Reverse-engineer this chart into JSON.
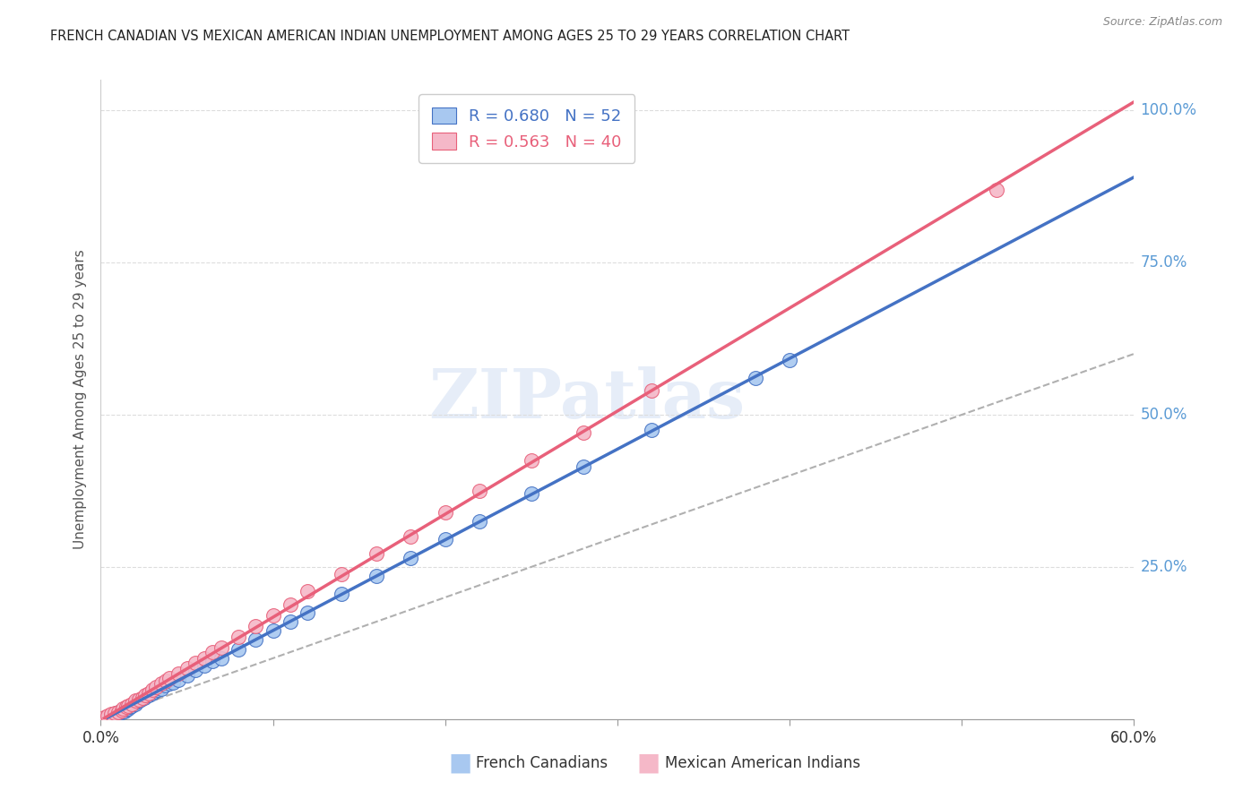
{
  "title": "FRENCH CANADIAN VS MEXICAN AMERICAN INDIAN UNEMPLOYMENT AMONG AGES 25 TO 29 YEARS CORRELATION CHART",
  "source": "Source: ZipAtlas.com",
  "ylabel": "Unemployment Among Ages 25 to 29 years",
  "xlim": [
    0.0,
    0.6
  ],
  "ylim": [
    0.0,
    1.05
  ],
  "xticks": [
    0.0,
    0.1,
    0.2,
    0.3,
    0.4,
    0.5,
    0.6
  ],
  "xticklabels": [
    "0.0%",
    "",
    "",
    "",
    "",
    "",
    "60.0%"
  ],
  "ytick_vals": [
    0.0,
    0.25,
    0.5,
    0.75,
    1.0
  ],
  "ytick_right_labels": [
    "",
    "25.0%",
    "50.0%",
    "75.0%",
    "100.0%"
  ],
  "R_blue": 0.68,
  "N_blue": 52,
  "R_pink": 0.563,
  "N_pink": 40,
  "blue_color": "#a8c8f0",
  "pink_color": "#f5b8c8",
  "blue_line_color": "#4472c4",
  "pink_line_color": "#e8607a",
  "right_axis_color": "#5b9bd5",
  "blue_slope": 1.45,
  "blue_intercept": -0.005,
  "pink_slope": 1.65,
  "pink_intercept": 0.005,
  "french_canadian_x": [
    0.003,
    0.005,
    0.006,
    0.007,
    0.008,
    0.009,
    0.01,
    0.01,
    0.012,
    0.013,
    0.014,
    0.015,
    0.015,
    0.016,
    0.017,
    0.018,
    0.019,
    0.02,
    0.02,
    0.022,
    0.023,
    0.025,
    0.026,
    0.028,
    0.03,
    0.031,
    0.033,
    0.035,
    0.037,
    0.04,
    0.042,
    0.045,
    0.05,
    0.055,
    0.06,
    0.065,
    0.07,
    0.08,
    0.09,
    0.1,
    0.11,
    0.12,
    0.14,
    0.16,
    0.18,
    0.2,
    0.22,
    0.25,
    0.28,
    0.32,
    0.38,
    0.4
  ],
  "french_canadian_y": [
    0.002,
    0.003,
    0.005,
    0.006,
    0.007,
    0.01,
    0.008,
    0.012,
    0.012,
    0.015,
    0.013,
    0.016,
    0.018,
    0.018,
    0.02,
    0.022,
    0.024,
    0.025,
    0.028,
    0.03,
    0.032,
    0.035,
    0.038,
    0.04,
    0.042,
    0.045,
    0.048,
    0.05,
    0.055,
    0.058,
    0.06,
    0.065,
    0.072,
    0.08,
    0.088,
    0.095,
    0.1,
    0.115,
    0.13,
    0.145,
    0.16,
    0.175,
    0.205,
    0.235,
    0.265,
    0.295,
    0.325,
    0.37,
    0.415,
    0.475,
    0.56,
    0.59
  ],
  "mexican_american_x": [
    0.002,
    0.004,
    0.006,
    0.008,
    0.01,
    0.012,
    0.013,
    0.015,
    0.016,
    0.018,
    0.02,
    0.022,
    0.024,
    0.026,
    0.028,
    0.03,
    0.032,
    0.035,
    0.038,
    0.04,
    0.045,
    0.05,
    0.055,
    0.06,
    0.065,
    0.07,
    0.08,
    0.09,
    0.1,
    0.11,
    0.12,
    0.14,
    0.16,
    0.18,
    0.2,
    0.22,
    0.25,
    0.28,
    0.32,
    0.52
  ],
  "mexican_american_y": [
    0.003,
    0.005,
    0.008,
    0.01,
    0.012,
    0.015,
    0.018,
    0.02,
    0.022,
    0.025,
    0.03,
    0.032,
    0.035,
    0.04,
    0.042,
    0.048,
    0.052,
    0.058,
    0.063,
    0.068,
    0.075,
    0.084,
    0.093,
    0.1,
    0.11,
    0.118,
    0.135,
    0.152,
    0.17,
    0.188,
    0.21,
    0.238,
    0.272,
    0.3,
    0.34,
    0.375,
    0.425,
    0.47,
    0.54,
    0.87
  ]
}
